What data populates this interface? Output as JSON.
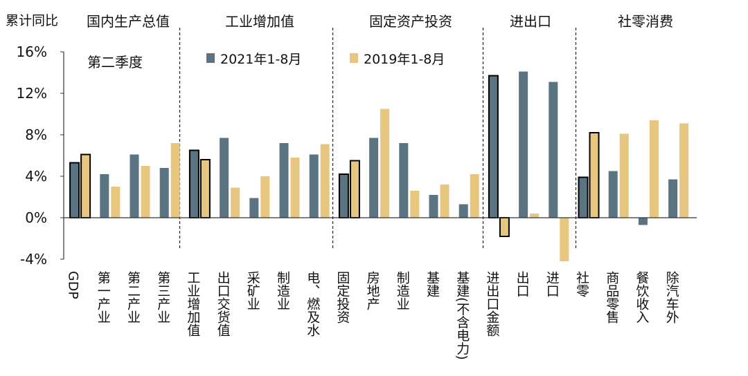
{
  "chart_data": {
    "type": "bar",
    "ylabel": "累计同比",
    "y_unit": "%",
    "ylim": [
      -4,
      16
    ],
    "yticks": [
      -4,
      0,
      4,
      8,
      12,
      16
    ],
    "ytick_labels": [
      "-4%",
      "0%",
      "4%",
      "8%",
      "12%",
      "16%"
    ],
    "legend": {
      "placement": "top-center"
    },
    "groups": [
      {
        "title": "国内生产总值",
        "note": "第二季度",
        "categories": [
          "GDP",
          "第一产业",
          "第二产业",
          "第三产业"
        ],
        "highlight_first": true
      },
      {
        "title": "工业增加值",
        "note": "",
        "categories": [
          "工业增加值",
          "出口交货值",
          "采矿业",
          "制造业",
          "电、燃及水"
        ],
        "highlight_first": true
      },
      {
        "title": "固定资产投资",
        "note": "",
        "categories": [
          "固定投资",
          "房地产",
          "制造业",
          "基建",
          "基建(不含电力)"
        ],
        "highlight_first": true
      },
      {
        "title": "进出口",
        "note": "",
        "categories": [
          "进出口金额",
          "出口",
          "进口"
        ],
        "highlight_first": true
      },
      {
        "title": "社零消费",
        "note": "",
        "categories": [
          "社零",
          "商品零售",
          "餐饮收入",
          "除汽车外"
        ],
        "highlight_first": true
      }
    ],
    "series": [
      {
        "name": "2021年1-8月",
        "color": "#5b7482",
        "values": [
          5.3,
          4.2,
          6.1,
          4.8,
          6.5,
          7.7,
          1.9,
          7.2,
          6.1,
          4.2,
          7.7,
          7.2,
          2.2,
          1.3,
          13.7,
          14.1,
          13.1,
          3.9,
          4.5,
          -0.7,
          3.7
        ]
      },
      {
        "name": "2019年1-8月",
        "color": "#e7c680",
        "values": [
          6.1,
          3.0,
          5.0,
          7.2,
          5.6,
          2.9,
          4.0,
          5.8,
          7.1,
          5.5,
          10.5,
          2.6,
          3.2,
          4.2,
          -1.8,
          0.4,
          -4.2,
          8.2,
          8.1,
          9.4,
          9.1
        ]
      }
    ]
  }
}
